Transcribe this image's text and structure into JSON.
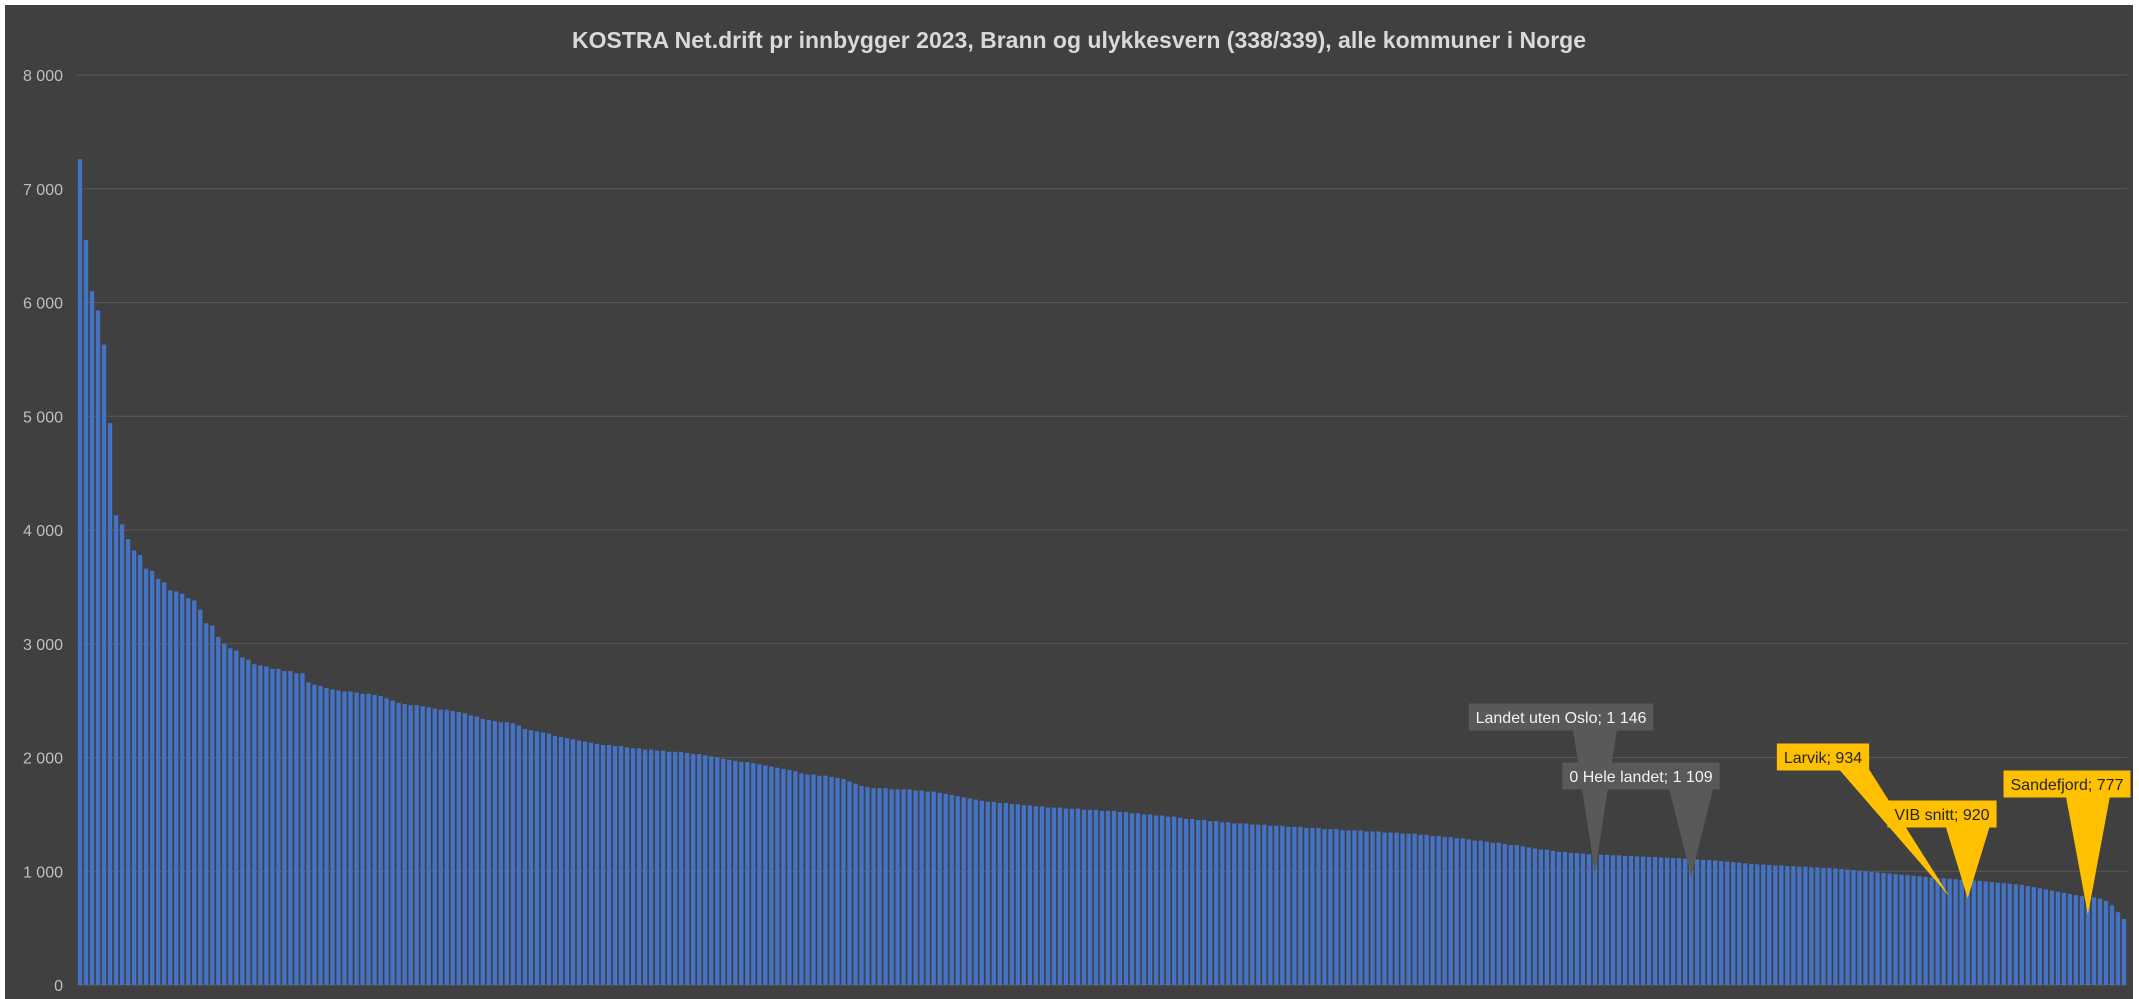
{
  "chart_data": {
    "type": "bar",
    "title": "KOSTRA Net.drift pr innbygger 2023, Brann og ulykkesvern (338/339), alle kommuner i Norge",
    "xlabel": "",
    "ylabel": "",
    "ylim": [
      0,
      8000
    ],
    "yticks": [
      "0",
      "1 000",
      "2 000",
      "3 000",
      "4 000",
      "5 000",
      "6 000",
      "7 000",
      "8 000"
    ],
    "grid": true,
    "legend": "none",
    "bar_color": "#4472c4",
    "values": [
      7260,
      6550,
      6100,
      5930,
      5630,
      4940,
      4130,
      4050,
      3920,
      3820,
      3780,
      3660,
      3640,
      3570,
      3540,
      3470,
      3460,
      3440,
      3400,
      3380,
      3300,
      3180,
      3160,
      3060,
      3000,
      2960,
      2940,
      2880,
      2860,
      2820,
      2810,
      2800,
      2780,
      2780,
      2760,
      2760,
      2740,
      2740,
      2660,
      2640,
      2630,
      2610,
      2600,
      2590,
      2580,
      2580,
      2570,
      2560,
      2560,
      2550,
      2540,
      2520,
      2500,
      2480,
      2470,
      2460,
      2460,
      2450,
      2440,
      2430,
      2420,
      2420,
      2410,
      2400,
      2390,
      2370,
      2360,
      2340,
      2330,
      2320,
      2310,
      2310,
      2300,
      2280,
      2250,
      2240,
      2230,
      2220,
      2210,
      2190,
      2180,
      2170,
      2160,
      2150,
      2140,
      2130,
      2120,
      2110,
      2110,
      2100,
      2100,
      2090,
      2080,
      2080,
      2070,
      2070,
      2060,
      2060,
      2050,
      2050,
      2050,
      2040,
      2030,
      2030,
      2020,
      2010,
      2000,
      1990,
      1980,
      1970,
      1960,
      1960,
      1950,
      1940,
      1930,
      1920,
      1910,
      1900,
      1890,
      1880,
      1860,
      1850,
      1850,
      1840,
      1840,
      1830,
      1820,
      1810,
      1790,
      1770,
      1750,
      1740,
      1730,
      1730,
      1730,
      1720,
      1720,
      1720,
      1720,
      1710,
      1710,
      1700,
      1700,
      1690,
      1680,
      1670,
      1660,
      1650,
      1640,
      1630,
      1620,
      1610,
      1610,
      1600,
      1600,
      1590,
      1590,
      1580,
      1580,
      1570,
      1570,
      1560,
      1560,
      1560,
      1550,
      1550,
      1550,
      1540,
      1540,
      1540,
      1530,
      1530,
      1530,
      1520,
      1520,
      1510,
      1510,
      1500,
      1500,
      1490,
      1490,
      1480,
      1480,
      1470,
      1460,
      1460,
      1450,
      1450,
      1440,
      1440,
      1430,
      1430,
      1420,
      1420,
      1420,
      1410,
      1410,
      1410,
      1400,
      1400,
      1400,
      1390,
      1390,
      1390,
      1380,
      1380,
      1380,
      1370,
      1370,
      1370,
      1360,
      1360,
      1360,
      1360,
      1350,
      1350,
      1350,
      1340,
      1340,
      1340,
      1330,
      1330,
      1330,
      1320,
      1320,
      1310,
      1310,
      1300,
      1300,
      1290,
      1290,
      1280,
      1270,
      1270,
      1260,
      1250,
      1250,
      1240,
      1230,
      1230,
      1220,
      1210,
      1200,
      1190,
      1190,
      1180,
      1170,
      1170,
      1160,
      1160,
      1155,
      1150,
      1146,
      1145,
      1145,
      1140,
      1140,
      1135,
      1135,
      1130,
      1130,
      1125,
      1125,
      1120,
      1120,
      1115,
      1115,
      1110,
      1109,
      1105,
      1100,
      1100,
      1095,
      1090,
      1085,
      1080,
      1075,
      1070,
      1065,
      1060,
      1060,
      1055,
      1050,
      1050,
      1045,
      1045,
      1040,
      1040,
      1035,
      1035,
      1030,
      1030,
      1025,
      1020,
      1015,
      1010,
      1005,
      1000,
      995,
      990,
      985,
      980,
      975,
      970,
      965,
      960,
      955,
      950,
      945,
      940,
      938,
      934,
      930,
      925,
      920,
      920,
      915,
      910,
      905,
      900,
      895,
      890,
      885,
      880,
      870,
      860,
      850,
      840,
      830,
      820,
      810,
      800,
      790,
      780,
      777,
      770,
      760,
      740,
      700,
      640,
      580
    ],
    "annotations": [
      {
        "label": "Landet uten Oslo; 1 146",
        "value": 1146,
        "style": "grey"
      },
      {
        "label": "0 Hele landet; 1 109",
        "value": 1109,
        "style": "grey"
      },
      {
        "label": "Larvik; 934",
        "value": 934,
        "style": "yellow"
      },
      {
        "label": "VIB snitt; 920",
        "value": 920,
        "style": "yellow"
      },
      {
        "label": "Sandefjord; 777",
        "value": 777,
        "style": "yellow"
      }
    ],
    "colors": {
      "background": "#404040",
      "gridline": "#595959",
      "callout_grey": "#595959",
      "callout_grey_text": "#f2f2f2",
      "callout_yellow": "#ffc000",
      "callout_yellow_text": "#262626"
    }
  }
}
